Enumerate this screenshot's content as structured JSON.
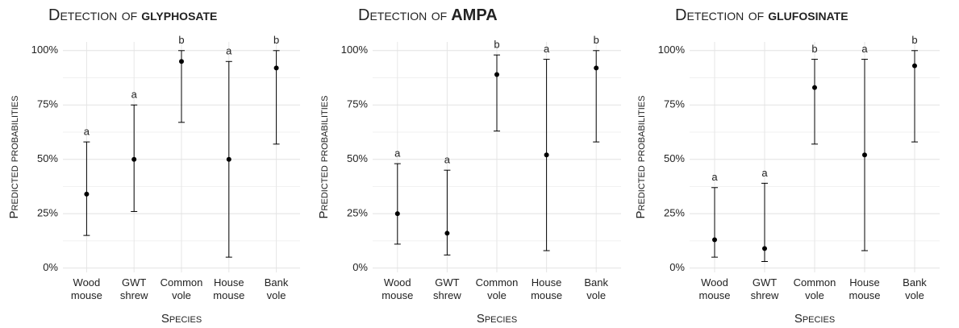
{
  "chart_data": [
    {
      "type": "errorpoint",
      "title": "Detection of",
      "compound": "glyphosate",
      "ylabel": "Predicted probabilities",
      "xlabel": "Species",
      "categories": [
        [
          "Wood",
          "mouse"
        ],
        [
          "GWT",
          "shrew"
        ],
        [
          "Common",
          "vole"
        ],
        [
          "House",
          "mouse"
        ],
        [
          "Bank",
          "vole"
        ]
      ],
      "values": [
        34,
        50,
        95,
        50,
        92
      ],
      "lower": [
        15,
        26,
        67,
        5,
        57
      ],
      "upper": [
        58,
        75,
        100,
        95,
        100
      ],
      "letters": [
        "a",
        "a",
        "b",
        "a",
        "b"
      ],
      "color": "#000000",
      "ylim": [
        -2,
        104
      ],
      "yticks": [
        {
          "value": 0,
          "label": "0%"
        },
        {
          "value": 25,
          "label": "25%"
        },
        {
          "value": 50,
          "label": "50%"
        },
        {
          "value": 75,
          "label": "75%"
        },
        {
          "value": 100,
          "label": "100%"
        }
      ],
      "grid": true
    },
    {
      "type": "errorpoint",
      "title": "Detection of",
      "compound": "AMPA",
      "ylabel": "Predicted probabilities",
      "xlabel": "Species",
      "categories": [
        [
          "Wood",
          "mouse"
        ],
        [
          "GWT",
          "shrew"
        ],
        [
          "Common",
          "vole"
        ],
        [
          "House",
          "mouse"
        ],
        [
          "Bank",
          "vole"
        ]
      ],
      "values": [
        25,
        16,
        89,
        52,
        92
      ],
      "lower": [
        11,
        6,
        63,
        8,
        58
      ],
      "upper": [
        48,
        45,
        98,
        96,
        100
      ],
      "letters": [
        "a",
        "a",
        "b",
        "a",
        "b"
      ],
      "color": "#000000",
      "ylim": [
        -2,
        104
      ],
      "yticks": [
        {
          "value": 0,
          "label": "0%"
        },
        {
          "value": 25,
          "label": "25%"
        },
        {
          "value": 50,
          "label": "50%"
        },
        {
          "value": 75,
          "label": "75%"
        },
        {
          "value": 100,
          "label": "100%"
        }
      ],
      "grid": true
    },
    {
      "type": "errorpoint",
      "title": "Detection of",
      "compound": "glufosinate",
      "ylabel": "Predicted probabilities",
      "xlabel": "Species",
      "categories": [
        [
          "Wood",
          "mouse"
        ],
        [
          "GWT",
          "shrew"
        ],
        [
          "Common",
          "vole"
        ],
        [
          "House",
          "mouse"
        ],
        [
          "Bank",
          "vole"
        ]
      ],
      "values": [
        13,
        9,
        83,
        52,
        93
      ],
      "lower": [
        5,
        3,
        57,
        8,
        58
      ],
      "upper": [
        37,
        39,
        96,
        96,
        100
      ],
      "letters": [
        "a",
        "a",
        "b",
        "a",
        "b"
      ],
      "color": "#000000",
      "ylim": [
        -2,
        104
      ],
      "yticks": [
        {
          "value": 0,
          "label": "0%"
        },
        {
          "value": 25,
          "label": "25%"
        },
        {
          "value": 50,
          "label": "50%"
        },
        {
          "value": 75,
          "label": "75%"
        },
        {
          "value": 100,
          "label": "100%"
        }
      ],
      "grid": true
    }
  ]
}
